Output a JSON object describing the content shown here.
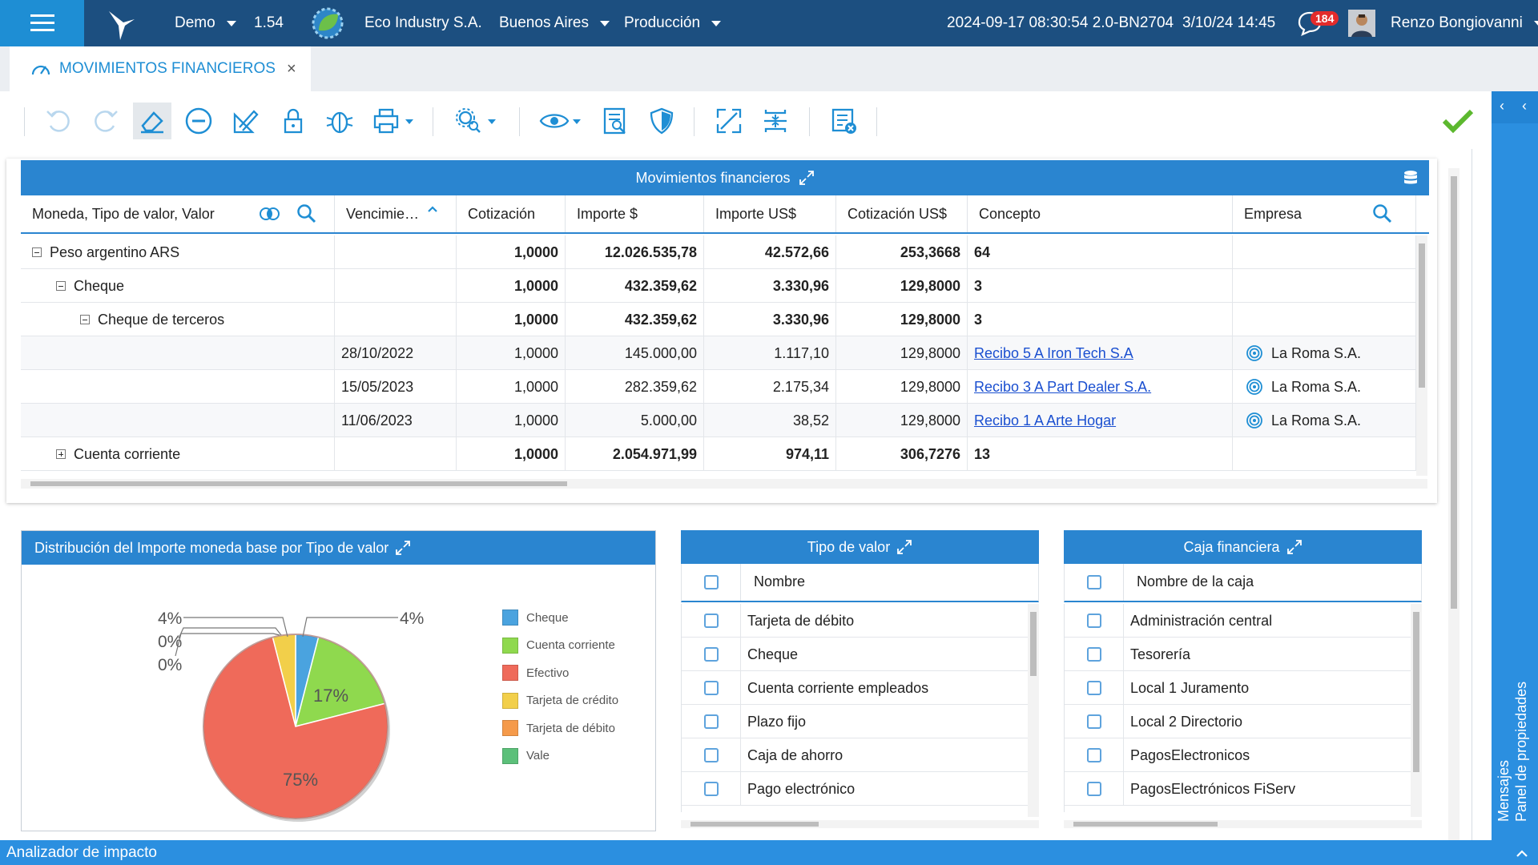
{
  "topbar": {
    "env": "Demo",
    "version": "1.54",
    "company": "Eco Industry S.A.",
    "city": "Buenos Aires",
    "mode": "Producción",
    "build": "2024-09-17 08:30:54 2.0-BN2704",
    "datetime": "3/10/24 14:45",
    "notif_count": "184",
    "user": "Renzo Bongiovanni"
  },
  "tab": {
    "title": "MOVIMIENTOS FINANCIEROS",
    "close": "×"
  },
  "toolbar": {
    "icons": [
      "undo-icon",
      "redo-icon",
      "eraser-icon",
      "remove-icon",
      "pencil-ruler-icon",
      "lock-icon",
      "bug-icon",
      "print-icon",
      "settings-search-icon",
      "view-icon",
      "report-icon",
      "shield-icon",
      "expand-icon",
      "split-icon",
      "checklist-cancel-icon",
      "check-icon"
    ]
  },
  "right_panel": {
    "label1": "Panel de propiedades",
    "label2": "Mensajes"
  },
  "grid": {
    "title": "Movimientos financieros",
    "columns": [
      "Moneda, Tipo de valor, Valor",
      "Vencimie…",
      "Cotización",
      "Importe $",
      "Importe US$",
      "Cotización US$",
      "Concepto",
      "Empresa"
    ],
    "rows": [
      {
        "level": 0,
        "exp": "-",
        "label": "Peso argentino ARS",
        "venc": "",
        "cot": "1,0000",
        "imp": "12.026.535,78",
        "usd": "42.572,66",
        "cotusd": "253,3668",
        "concepto": "64",
        "empresa": "",
        "bold": true
      },
      {
        "level": 1,
        "exp": "-",
        "label": "Cheque",
        "venc": "",
        "cot": "1,0000",
        "imp": "432.359,62",
        "usd": "3.330,96",
        "cotusd": "129,8000",
        "concepto": "3",
        "empresa": "",
        "bold": true
      },
      {
        "level": 2,
        "exp": "-",
        "label": "Cheque de terceros",
        "venc": "",
        "cot": "1,0000",
        "imp": "432.359,62",
        "usd": "3.330,96",
        "cotusd": "129,8000",
        "concepto": "3",
        "empresa": "",
        "bold": true
      },
      {
        "level": 3,
        "exp": "",
        "label": "",
        "venc": "28/10/2022",
        "cot": "1,0000",
        "imp": "145.000,00",
        "usd": "1.117,10",
        "cotusd": "129,8000",
        "concepto": "Recibo 5 A Iron Tech S.A",
        "empresa": "La Roma S.A.",
        "link": true
      },
      {
        "level": 3,
        "exp": "",
        "label": "",
        "venc": "15/05/2023",
        "cot": "1,0000",
        "imp": "282.359,62",
        "usd": "2.175,34",
        "cotusd": "129,8000",
        "concepto": "Recibo 3 A Part Dealer S.A.",
        "empresa": "La Roma S.A.",
        "link": true
      },
      {
        "level": 3,
        "exp": "",
        "label": "",
        "venc": "11/06/2023",
        "cot": "1,0000",
        "imp": "5.000,00",
        "usd": "38,52",
        "cotusd": "129,8000",
        "concepto": "Recibo 1 A Arte Hogar",
        "empresa": "La Roma S.A.",
        "link": true
      },
      {
        "level": 1,
        "exp": "+",
        "label": "Cuenta corriente",
        "venc": "",
        "cot": "1,0000",
        "imp": "2.054.971,99",
        "usd": "974,11",
        "cotusd": "306,7276",
        "concepto": "13",
        "empresa": "",
        "bold": true
      }
    ]
  },
  "pie_panel": {
    "title": "Distribución del Importe moneda base por Tipo de valor"
  },
  "chart_data": {
    "type": "pie",
    "title": "Distribución del Importe moneda base por Tipo de valor",
    "slice_labels": [
      "4%",
      "0%",
      "0%",
      "17%",
      "75%",
      "4%"
    ],
    "legend_position": "right",
    "series": [
      {
        "name": "Cheque",
        "value": 4,
        "color": "#4aa3df"
      },
      {
        "name": "Cuenta corriente",
        "value": 17,
        "color": "#8fd94e"
      },
      {
        "name": "Efectivo",
        "value": 75,
        "color": "#ef6a5a"
      },
      {
        "name": "Tarjeta de crédito",
        "value": 4,
        "color": "#f2cf4a"
      },
      {
        "name": "Tarjeta de débito",
        "value": 0,
        "color": "#f59a4a"
      },
      {
        "name": "Vale",
        "value": 0,
        "color": "#5cc07a"
      }
    ]
  },
  "tipo_valor": {
    "title": "Tipo de valor",
    "header": "Nombre",
    "items": [
      "Tarjeta de débito",
      "Cheque",
      "Cuenta corriente empleados",
      "Plazo fijo",
      "Caja de ahorro",
      "Pago electrónico"
    ]
  },
  "caja": {
    "title": "Caja financiera",
    "header": "Nombre de la caja",
    "items": [
      "Administración central",
      "Tesorería",
      "Local 1 Juramento",
      "Local 2 Directorio",
      "PagosElectronicos",
      "PagosElectrónicos FiServ"
    ]
  },
  "bottom": {
    "label": "Analizador de impacto"
  }
}
